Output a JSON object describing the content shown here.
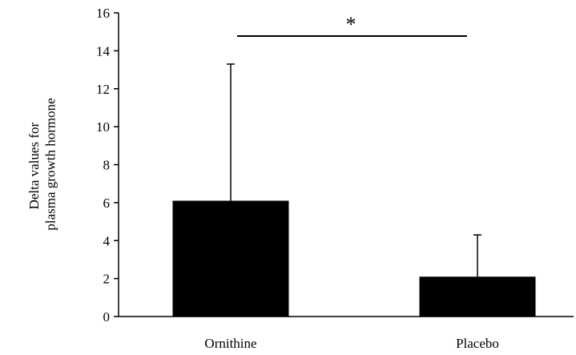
{
  "chart_data": {
    "type": "bar",
    "title": "",
    "xlabel": "",
    "ylabel_lines": [
      "Delta values for",
      "plasma growth hormone"
    ],
    "categories": [
      "Ornithine",
      "Placebo"
    ],
    "values": [
      6.1,
      2.1
    ],
    "error_upper": [
      13.3,
      4.3
    ],
    "ylim": [
      0,
      16
    ],
    "yticks": [
      0,
      2,
      4,
      6,
      8,
      10,
      12,
      14,
      16
    ],
    "ytick_labels": [
      "0",
      "2",
      "4",
      "6",
      "8",
      "10",
      "12",
      "14",
      "16"
    ],
    "bar_color": "#000000",
    "grid": false,
    "significance": {
      "between": [
        "Ornithine",
        "Placebo"
      ],
      "marker": "*"
    }
  }
}
